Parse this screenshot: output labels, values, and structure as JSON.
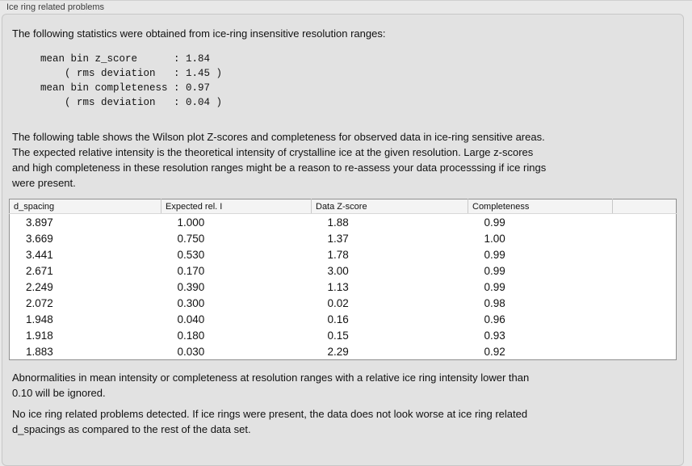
{
  "window": {
    "group_title": "Ice ring related problems"
  },
  "panel": {
    "intro": "The following statistics were obtained from ice-ring insensitive resolution ranges:",
    "stats_block": "mean bin z_score      : 1.84\n    ( rms deviation   : 1.45 )\nmean bin completeness : 0.97\n    ( rms deviation   : 0.04 )",
    "table_description": "The following table shows the Wilson plot Z-scores and completeness for observed data in ice-ring sensitive areas.\nThe expected relative intensity is the theoretical intensity of crystalline ice at the given resolution. Large z-scores\nand high completeness in these resolution ranges might be a reason to re-assess your data processsing if ice rings\nwere present.",
    "table": {
      "columns": [
        "d_spacing",
        "Expected rel. I",
        "Data Z-score",
        "Completeness",
        ""
      ],
      "rows": [
        [
          "3.897",
          "1.000",
          "1.88",
          "0.99"
        ],
        [
          "3.669",
          "0.750",
          "1.37",
          "1.00"
        ],
        [
          "3.441",
          "0.530",
          "1.78",
          "0.99"
        ],
        [
          "2.671",
          "0.170",
          "3.00",
          "0.99"
        ],
        [
          "2.249",
          "0.390",
          "1.13",
          "0.99"
        ],
        [
          "2.072",
          "0.300",
          "0.02",
          "0.98"
        ],
        [
          "1.948",
          "0.040",
          "0.16",
          "0.96"
        ],
        [
          "1.918",
          "0.180",
          "0.15",
          "0.93"
        ],
        [
          "1.883",
          "0.030",
          "2.29",
          "0.92"
        ]
      ]
    },
    "note_ignore": "Abnormalities in mean intensity or completeness at resolution ranges with a relative ice ring intensity lower than\n0.10 will be ignored.",
    "conclusion": "No ice ring related problems detected. If ice rings were present, the data does not look worse at ice ring related\nd_spacings as compared to the rest of the data set."
  },
  "colors": {
    "outer_background": "#e8e8e8",
    "panel_background": "#e2e2e2",
    "panel_border": "#c7c7c7",
    "table_border": "#8f8f8f",
    "table_header_background": "#f4f4f4",
    "text": "#111111",
    "label_text": "#3c3c3c"
  }
}
